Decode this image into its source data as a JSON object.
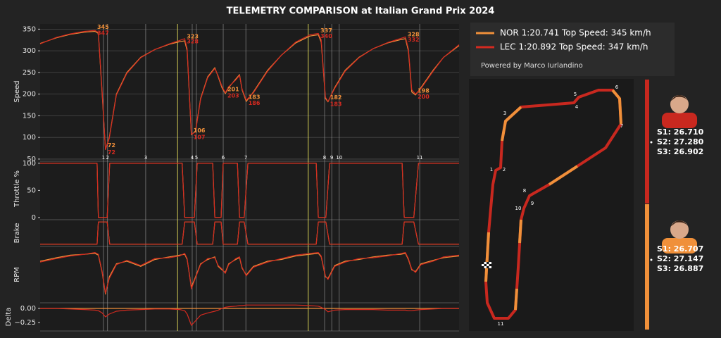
{
  "title": "TELEMETRY COMPARISON at Italian Grand Prix 2024",
  "legend_note": "Powered by Marco Iurlandino",
  "corners": [
    {
      "label": "1",
      "x": 15.1
    },
    {
      "label": "2",
      "x": 16.1
    },
    {
      "label": "3",
      "x": 25.2
    },
    {
      "label": "4",
      "x": 36.3
    },
    {
      "label": "5",
      "x": 37.3
    },
    {
      "label": "6",
      "x": 43.7
    },
    {
      "label": "7",
      "x": 49.1
    },
    {
      "label": "8",
      "x": 67.9
    },
    {
      "label": "9",
      "x": 69.6
    },
    {
      "label": "10",
      "x": 71.4
    },
    {
      "label": "11",
      "x": 90.6
    }
  ],
  "sector_lines": [
    32.8,
    64.0
  ],
  "track_map": {
    "corners": [
      "1",
      "2",
      "3",
      "4",
      "5",
      "6",
      "7",
      "8",
      "9",
      "10",
      "11"
    ]
  },
  "sector_times": [
    [
      "S1: 26.710",
      "S2: 27.280",
      "S3: 26.902"
    ],
    [
      "S1: 26.707",
      "S2: 27.147",
      "S3: 26.887"
    ]
  ],
  "chart_data": [
    {
      "type": "line",
      "ylabel": "Speed",
      "grid": true,
      "xlim": [
        0,
        100
      ],
      "ylim": [
        45,
        362
      ],
      "yticks": [
        50,
        100,
        150,
        200,
        250,
        300,
        350
      ],
      "x": [
        0,
        3.9,
        7.2,
        10.6,
        13.1,
        13.9,
        14.8,
        15.6,
        16.5,
        18.2,
        20.7,
        24.0,
        27.4,
        30.8,
        33.3,
        34.5,
        35.1,
        36.1,
        37.1,
        38.3,
        40.0,
        41.7,
        42.5,
        43.4,
        44.2,
        45.0,
        46.7,
        47.6,
        48.2,
        49.2,
        50.9,
        54.3,
        57.6,
        61.0,
        64.4,
        66.4,
        67.1,
        68.1,
        68.7,
        70.3,
        72.8,
        76.1,
        79.5,
        82.9,
        86.2,
        87.2,
        87.9,
        88.7,
        89.6,
        90.9,
        93.8,
        96.3,
        100
      ],
      "series": [
        {
          "name": "NOR 1:20.741  Top Speed: 345 km/h",
          "color": "#f0903a",
          "values": [
            317,
            330,
            338,
            343,
            345,
            340,
            200,
            72,
            100,
            200,
            250,
            285,
            303,
            315,
            321,
            323,
            300,
            106,
            115,
            190,
            240,
            261,
            240,
            215,
            201,
            215,
            235,
            245,
            210,
            183,
            205,
            255,
            290,
            318,
            334,
            337,
            320,
            190,
            182,
            215,
            255,
            285,
            305,
            318,
            326,
            328,
            300,
            205,
            198,
            215,
            255,
            285,
            312
          ],
          "labels": [
            {
              "x": 13.1,
              "value": 345
            },
            {
              "x": 15.6,
              "value": 72
            },
            {
              "x": 34.5,
              "value": 323
            },
            {
              "x": 36.1,
              "value": 106
            },
            {
              "x": 44.2,
              "value": 201
            },
            {
              "x": 49.2,
              "value": 183
            },
            {
              "x": 66.4,
              "value": 337
            },
            {
              "x": 68.7,
              "value": 182
            },
            {
              "x": 87.2,
              "value": 328
            },
            {
              "x": 89.6,
              "value": 198
            }
          ]
        },
        {
          "name": "LEC 1:20.892  Top Speed: 347 km/h",
          "color": "#d42a20",
          "values": [
            316,
            331,
            339,
            345,
            347,
            342,
            205,
            72,
            98,
            198,
            248,
            284,
            303,
            316,
            324,
            328,
            305,
            107,
            113,
            188,
            238,
            259,
            242,
            218,
            203,
            217,
            233,
            243,
            212,
            186,
            203,
            253,
            290,
            320,
            337,
            340,
            325,
            193,
            183,
            213,
            253,
            284,
            305,
            319,
            329,
            332,
            305,
            210,
            200,
            213,
            253,
            285,
            314
          ],
          "labels": [
            {
              "x": 13.1,
              "value": 347
            },
            {
              "x": 15.6,
              "value": 72
            },
            {
              "x": 34.5,
              "value": 328
            },
            {
              "x": 36.1,
              "value": 107
            },
            {
              "x": 44.2,
              "value": 203
            },
            {
              "x": 49.2,
              "value": 186
            },
            {
              "x": 66.4,
              "value": 340
            },
            {
              "x": 68.7,
              "value": 183
            },
            {
              "x": 87.2,
              "value": 332
            },
            {
              "x": 89.6,
              "value": 200
            }
          ]
        }
      ]
    },
    {
      "type": "line",
      "ylabel": "Throttle %",
      "xlim": [
        0,
        100
      ],
      "ylim": [
        -4,
        105
      ],
      "yticks": [
        0,
        50,
        100
      ],
      "x": [
        0,
        13.6,
        13.9,
        16.0,
        16.6,
        33.9,
        34.5,
        36.8,
        37.5,
        41.2,
        41.7,
        43.2,
        43.7,
        47.1,
        47.6,
        48.7,
        49.6,
        65.9,
        66.4,
        68.2,
        69.1,
        86.4,
        86.9,
        89.2,
        90.3,
        100
      ],
      "series": [
        {
          "color": "#f0903a",
          "values": [
            100,
            100,
            0,
            0,
            100,
            100,
            0,
            0,
            100,
            100,
            0,
            0,
            100,
            100,
            0,
            0,
            100,
            100,
            0,
            0,
            100,
            100,
            0,
            0,
            100,
            100
          ]
        },
        {
          "color": "#d42a20",
          "values": [
            100,
            100,
            0,
            0,
            100,
            100,
            0,
            0,
            100,
            100,
            0,
            0,
            100,
            100,
            0,
            0,
            100,
            100,
            0,
            0,
            100,
            100,
            0,
            0,
            100,
            100
          ]
        }
      ]
    },
    {
      "type": "line",
      "ylabel": "Brake",
      "xlim": [
        0,
        100
      ],
      "ylim": [
        -0.1,
        1.1
      ],
      "x": [
        0,
        13.6,
        13.9,
        16.0,
        16.6,
        33.9,
        34.5,
        36.8,
        37.5,
        41.2,
        41.7,
        43.2,
        43.7,
        47.1,
        47.6,
        48.7,
        49.6,
        65.9,
        66.4,
        68.2,
        69.1,
        86.4,
        86.9,
        89.2,
        90.3,
        100
      ],
      "series": [
        {
          "color": "#f0903a",
          "values": [
            0,
            0,
            1,
            1,
            0,
            0,
            1,
            1,
            0,
            0,
            1,
            1,
            0,
            0,
            1,
            1,
            0,
            0,
            1,
            1,
            0,
            0,
            1,
            1,
            0,
            0
          ]
        },
        {
          "color": "#d42a20",
          "values": [
            0,
            0,
            1,
            1,
            0,
            0,
            1,
            1,
            0,
            0,
            1,
            1,
            0,
            0,
            1,
            1,
            0,
            0,
            1,
            1,
            0,
            0,
            1,
            1,
            0,
            0
          ]
        }
      ]
    },
    {
      "type": "line",
      "ylabel": "RPM",
      "xlim": [
        0,
        100
      ],
      "ylim": [
        6000,
        12500
      ],
      "x": [
        0,
        3.9,
        7.2,
        10.6,
        13.1,
        13.9,
        14.8,
        15.6,
        16.5,
        18.2,
        20.7,
        24.0,
        27.4,
        30.8,
        33.3,
        34.5,
        35.1,
        36.1,
        37.1,
        38.3,
        40.0,
        41.7,
        42.5,
        43.4,
        44.2,
        45.0,
        46.7,
        47.6,
        48.2,
        49.2,
        50.9,
        54.3,
        57.6,
        61.0,
        64.4,
        66.4,
        67.1,
        68.1,
        68.7,
        70.3,
        72.8,
        76.1,
        79.5,
        82.9,
        86.2,
        87.2,
        87.9,
        88.7,
        89.6,
        90.9,
        93.8,
        96.3,
        100
      ],
      "series": [
        {
          "color": "#f0903a",
          "values": [
            10800,
            11200,
            11500,
            11600,
            11700,
            11500,
            9500,
            7000,
            9000,
            10500,
            10800,
            10200,
            11000,
            11300,
            11500,
            11600,
            11000,
            7800,
            9000,
            10500,
            11000,
            11300,
            10200,
            9800,
            9500,
            10500,
            11000,
            11200,
            10000,
            9200,
            10200,
            10800,
            11000,
            11400,
            11600,
            11700,
            11300,
            9000,
            8800,
            10300,
            10800,
            11000,
            11300,
            11500,
            11600,
            11700,
            11000,
            9800,
            9600,
            10500,
            10900,
            11200,
            11400
          ]
        },
        {
          "color": "#d42a20",
          "values": [
            10700,
            11100,
            11400,
            11600,
            11800,
            11600,
            9600,
            7100,
            8800,
            10400,
            10900,
            10300,
            11100,
            11200,
            11400,
            11700,
            11100,
            7600,
            8900,
            10400,
            11100,
            11200,
            10300,
            9900,
            9400,
            10400,
            11100,
            11300,
            10100,
            9100,
            10100,
            10700,
            11100,
            11500,
            11700,
            11800,
            11400,
            9100,
            8700,
            10200,
            10700,
            11100,
            11200,
            11400,
            11700,
            11800,
            11100,
            9900,
            9500,
            10400,
            10800,
            11300,
            11500
          ]
        }
      ]
    },
    {
      "type": "line",
      "ylabel": "Delta",
      "xlim": [
        0,
        100
      ],
      "ylim": [
        -0.4,
        0.1
      ],
      "yticks": [
        {
          "value": 0,
          "label": "0.00"
        },
        {
          "value": -0.25,
          "label": "−0.25"
        }
      ],
      "x": [
        0,
        3.9,
        7.2,
        10.6,
        13.1,
        13.9,
        14.8,
        15.6,
        16.5,
        18.2,
        20.7,
        24.0,
        27.4,
        30.8,
        33.3,
        34.5,
        35.1,
        36.1,
        37.1,
        38.3,
        40.0,
        41.7,
        42.5,
        43.4,
        44.2,
        45.0,
        46.7,
        47.6,
        48.2,
        49.2,
        50.9,
        54.3,
        57.6,
        61.0,
        64.4,
        66.4,
        67.1,
        68.1,
        68.7,
        70.3,
        72.8,
        76.1,
        79.5,
        82.9,
        86.2,
        87.2,
        87.9,
        88.7,
        89.6,
        90.9,
        93.8,
        96.3,
        100
      ],
      "series": [
        {
          "color": "#f0903a",
          "values": [
            0,
            0,
            0,
            0,
            0,
            0,
            0,
            0,
            0,
            0,
            0,
            0,
            0,
            0,
            0,
            0,
            0,
            0,
            0,
            0,
            0,
            0,
            0,
            0,
            0,
            0,
            0,
            0,
            0,
            0,
            0,
            0,
            0,
            0,
            0,
            0,
            0,
            0,
            0,
            0,
            0,
            0,
            0,
            0,
            0,
            0,
            0,
            0,
            0,
            0,
            0,
            0,
            0
          ]
        },
        {
          "color": "#d42a20",
          "values": [
            0,
            0,
            -0.01,
            -0.02,
            -0.03,
            -0.04,
            -0.08,
            -0.15,
            -0.1,
            -0.05,
            -0.03,
            -0.02,
            -0.01,
            -0.01,
            -0.02,
            -0.04,
            -0.1,
            -0.3,
            -0.22,
            -0.12,
            -0.08,
            -0.05,
            -0.03,
            0,
            0.02,
            0.03,
            0.04,
            0.05,
            0.05,
            0.06,
            0.06,
            0.06,
            0.06,
            0.06,
            0.05,
            0.04,
            0.02,
            -0.02,
            -0.06,
            -0.03,
            -0.02,
            -0.02,
            -0.02,
            -0.03,
            -0.03,
            -0.03,
            -0.04,
            -0.04,
            -0.03,
            -0.02,
            -0.01,
            0,
            0
          ]
        }
      ]
    }
  ]
}
